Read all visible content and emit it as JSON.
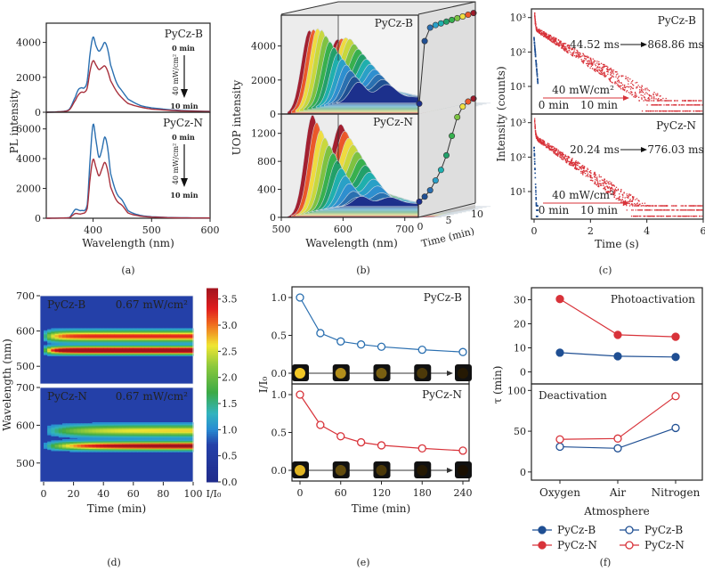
{
  "figure": {
    "panel_labels": [
      "(a)",
      "(b)",
      "(c)",
      "(d)",
      "(e)",
      "(f)"
    ]
  },
  "colors": {
    "blue": "#2a6fb0",
    "blue_dark": "#1f4f93",
    "red": "#d8333a",
    "dark_red": "#a8303c",
    "sky": "#2f8fd0",
    "navy": "#1c2f8c",
    "axis": "#222222"
  },
  "chart_data": [
    {
      "id": "a",
      "type": "line",
      "title": "",
      "xlabel": "Wavelength (nm)",
      "ylabel": "PL intensity",
      "xlim": [
        320,
        600
      ],
      "xticks": [
        400,
        500,
        600
      ],
      "subplots": [
        {
          "name": "PyCz-B",
          "ylim": [
            0,
            5000
          ],
          "yticks": [
            0,
            2000,
            4000
          ],
          "annotation_top": "0 min",
          "annotation_bottom": "10 min",
          "arrow_label": "40 mW/cm²",
          "x": [
            320,
            350,
            360,
            370,
            375,
            380,
            385,
            390,
            395,
            400,
            405,
            410,
            415,
            420,
            425,
            430,
            440,
            450,
            460,
            480,
            500,
            540,
            600
          ],
          "series": [
            {
              "name": "0 min",
              "values": [
                0,
                50,
                200,
                900,
                1300,
                1400,
                1400,
                1800,
                3400,
                4300,
                3800,
                3500,
                3700,
                4000,
                3600,
                2700,
                1700,
                1200,
                750,
                400,
                250,
                120,
                50
              ]
            },
            {
              "name": "10 min",
              "values": [
                0,
                40,
                160,
                700,
                1000,
                1150,
                1150,
                1400,
                2400,
                2950,
                2700,
                2450,
                2550,
                2650,
                2350,
                1800,
                1200,
                800,
                500,
                300,
                180,
                90,
                40
              ]
            }
          ]
        },
        {
          "name": "PyCz-N",
          "ylim": [
            0,
            7000
          ],
          "yticks": [
            0,
            2000,
            4000,
            6000
          ],
          "annotation_top": "0 min",
          "annotation_bottom": "10 min",
          "arrow_label": "40 mW/cm²",
          "x": [
            320,
            350,
            360,
            365,
            370,
            380,
            390,
            395,
            400,
            405,
            410,
            415,
            420,
            425,
            430,
            440,
            450,
            460,
            480,
            500,
            540,
            600
          ],
          "series": [
            {
              "name": "0 min",
              "values": [
                0,
                20,
                60,
                350,
                600,
                520,
                900,
                4000,
                6300,
                5200,
                4100,
                4600,
                5450,
                4700,
                3000,
                1700,
                1200,
                500,
                200,
                100,
                40,
                20
              ]
            },
            {
              "name": "10 min",
              "values": [
                0,
                15,
                40,
                200,
                320,
                300,
                650,
                2700,
                3950,
                3400,
                2850,
                3300,
                3750,
                3200,
                2100,
                1200,
                850,
                350,
                150,
                80,
                30,
                15
              ]
            }
          ]
        }
      ]
    },
    {
      "id": "b",
      "type": "area",
      "xlabel": "Wavelength (nm)",
      "ylabel": "UOP intensity",
      "zlabel": "Time (min)",
      "xlim": [
        500,
        750
      ],
      "xticks": [
        500,
        600,
        700
      ],
      "ztick_labels": [
        "0",
        "5",
        "10"
      ],
      "palette": [
        "#1c2f8c",
        "#1f4f93",
        "#2a6fb0",
        "#2f8fd0",
        "#2aa0c8",
        "#1fb0b0",
        "#22a06a",
        "#36b04e",
        "#7cc242",
        "#c8d83c",
        "#f0e040",
        "#ee5a2a",
        "#a11a2a"
      ],
      "subplots": [
        {
          "name": "PyCz-B",
          "ylim": [
            0,
            5500
          ],
          "yticks": [
            0,
            2000,
            4000
          ],
          "inset_time_min": [
            0,
            1,
            2,
            3,
            4,
            5,
            6,
            7,
            8,
            9,
            10
          ],
          "inset_peak": [
            300,
            4000,
            4750,
            4850,
            4900,
            4950,
            5000,
            5050,
            5100,
            5150,
            5200
          ]
        },
        {
          "name": "PyCz-N",
          "ylim": [
            0,
            1400
          ],
          "yticks": [
            0,
            400,
            800,
            1200
          ],
          "inset_time_min": [
            0,
            1,
            2,
            3,
            4,
            5,
            6,
            7,
            8,
            9,
            10
          ],
          "inset_peak": [
            150,
            210,
            290,
            420,
            560,
            760,
            1030,
            1290,
            1430,
            1490,
            1520
          ]
        }
      ]
    },
    {
      "id": "c",
      "type": "scatter",
      "xlabel": "Time (s)",
      "ylabel": "Intensity (counts)",
      "xlim": [
        0,
        6
      ],
      "xticks": [
        0,
        2,
        4,
        6
      ],
      "yscale": "log",
      "yticks": [
        "10¹",
        "10²",
        "10³"
      ],
      "subplots": [
        {
          "name": "PyCz-B",
          "lifetime_before": "44.52 ms",
          "lifetime_after": "868.86 ms",
          "power": "40 mW/cm²",
          "label_before": "0 min",
          "label_after": "10 min",
          "tau_s": [
            0.04452,
            0.86886
          ],
          "a0": [
            300,
            500
          ]
        },
        {
          "name": "PyCz-N",
          "lifetime_before": "20.24 ms",
          "lifetime_after": "776.03 ms",
          "power": "40 mW/cm²",
          "label_before": "0 min",
          "label_after": "10 min",
          "tau_s": [
            0.02024,
            0.77603
          ],
          "a0": [
            300,
            400
          ]
        }
      ]
    },
    {
      "id": "d",
      "type": "heatmap",
      "xlabel": "Time (min)",
      "ylabel": "Wavelength (nm)",
      "xlim": [
        0,
        100
      ],
      "xticks": [
        0,
        20,
        40,
        60,
        80,
        100
      ],
      "colorbar_label": "I/I₀",
      "colorbar_ticks": [
        "0.0",
        "0.5",
        "1.0",
        "1.5",
        "2.0",
        "2.5",
        "3.0",
        "3.5"
      ],
      "colorbar_range": [
        0,
        3.7
      ],
      "subplots": [
        {
          "name": "PyCz-B",
          "power": "0.67 mW/cm²",
          "ylim": [
            450,
            700
          ],
          "yticks": [
            500,
            600,
            700
          ],
          "main_band_nm": 545,
          "main_band_max": 3.6,
          "second_band_nm": 585,
          "second_band_max": 2.5
        },
        {
          "name": "PyCz-N",
          "power": "0.67 mW/cm²",
          "ylim": [
            450,
            700
          ],
          "yticks": [
            500,
            600,
            700
          ],
          "main_band_nm": 545,
          "main_band_max": 3.2,
          "second_band_nm": 585,
          "second_band_max": 1.9
        }
      ]
    },
    {
      "id": "e",
      "type": "line",
      "xlabel": "Time (min)",
      "ylabel": "I/I₀",
      "xlim": [
        -10,
        250
      ],
      "xticks": [
        0,
        60,
        120,
        180,
        240
      ],
      "subplots": [
        {
          "name": "PyCz-B",
          "ylim": [
            -0.1,
            1.1
          ],
          "yticks": [
            "0.0",
            "0.5",
            "1.0"
          ],
          "x": [
            0,
            30,
            60,
            90,
            120,
            180,
            240
          ],
          "values": [
            1.0,
            0.53,
            0.42,
            0.38,
            0.35,
            0.31,
            0.28
          ],
          "photo_brightness": [
            1.0,
            0.7,
            0.45,
            0.25,
            0.08
          ]
        },
        {
          "name": "PyCz-N",
          "ylim": [
            -0.1,
            1.1
          ],
          "yticks": [
            "0.0",
            "0.5",
            "1.0"
          ],
          "x": [
            0,
            30,
            60,
            90,
            120,
            180,
            240
          ],
          "values": [
            1.0,
            0.6,
            0.45,
            0.37,
            0.33,
            0.29,
            0.26
          ],
          "photo_brightness": [
            0.9,
            0.35,
            0.25,
            0.08,
            0.03
          ]
        }
      ]
    },
    {
      "id": "f",
      "type": "line",
      "xlabel": "Atmosphere",
      "ylabel": "τ (min)",
      "categories": [
        "Oxygen",
        "Air",
        "Nitrogen"
      ],
      "subplots": [
        {
          "name": "Photoactivation",
          "ylim": [
            -5,
            35
          ],
          "yticks": [
            0,
            10,
            20,
            30
          ],
          "series": [
            {
              "name": "PyCz-B",
              "filled": true,
              "values": [
                8,
                6.5,
                6.2
              ]
            },
            {
              "name": "PyCz-N",
              "filled": true,
              "values": [
                30.3,
                15.4,
                14.6
              ]
            }
          ]
        },
        {
          "name": "Deactivation",
          "ylim": [
            -10,
            108
          ],
          "yticks": [
            0,
            50,
            100
          ],
          "series": [
            {
              "name": "PyCz-B",
              "filled": false,
              "values": [
                31,
                29,
                54
              ]
            },
            {
              "name": "PyCz-N",
              "filled": false,
              "values": [
                40,
                41,
                93
              ]
            }
          ]
        }
      ],
      "legend": [
        {
          "name": "PyCz-B",
          "style": "filled",
          "color": "blue"
        },
        {
          "name": "PyCz-B",
          "style": "open",
          "color": "blue"
        },
        {
          "name": "PyCz-N",
          "style": "filled",
          "color": "red"
        },
        {
          "name": "PyCz-N",
          "style": "open",
          "color": "red"
        }
      ],
      "legend_position": "bottom"
    }
  ]
}
